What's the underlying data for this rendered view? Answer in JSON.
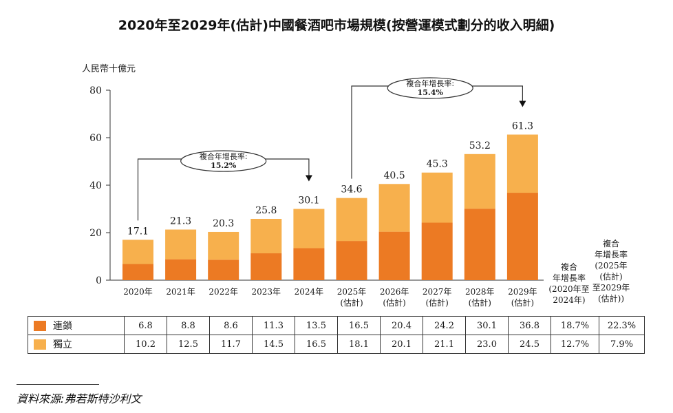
{
  "title": "2020年至2029年(估計)中國餐酒吧市場規模(按營運模式劃分的收入明細)",
  "chart_data": {
    "type": "bar",
    "stacked": true,
    "title": "2020年至2029年(估計)中國餐酒吧市場規模(按營運模式劃分的收入明細)",
    "ylabel": "人民幣十億元",
    "ylim": [
      0,
      80
    ],
    "yticks": [
      "0",
      "20",
      "40",
      "60",
      "80"
    ],
    "categories": [
      [
        "2020年"
      ],
      [
        "2021年"
      ],
      [
        "2022年"
      ],
      [
        "2023年"
      ],
      [
        "2024年"
      ],
      [
        "2025年",
        "(估計)"
      ],
      [
        "2026年",
        "(估計)"
      ],
      [
        "2027年",
        "(估計)"
      ],
      [
        "2028年",
        "(估計)"
      ],
      [
        "2029年",
        "(估計)"
      ]
    ],
    "totals": [
      "17.1",
      "21.3",
      "20.3",
      "25.8",
      "30.1",
      "34.6",
      "40.5",
      "45.3",
      "53.2",
      "61.3"
    ],
    "series": [
      {
        "name": "連鎖",
        "color": "#ec7a23",
        "values": [
          6.8,
          8.8,
          8.6,
          11.3,
          13.5,
          16.5,
          20.4,
          24.2,
          30.1,
          36.8
        ],
        "labels": [
          "6.8",
          "8.8",
          "8.6",
          "11.3",
          "13.5",
          "16.5",
          "20.4",
          "24.2",
          "30.1",
          "36.8"
        ],
        "cagr": [
          "18.7%",
          "22.3%"
        ]
      },
      {
        "name": "獨立",
        "color": "#f7b04d",
        "values": [
          10.2,
          12.5,
          11.7,
          14.5,
          16.5,
          18.1,
          20.1,
          21.1,
          23.0,
          24.5
        ],
        "labels": [
          "10.2",
          "12.5",
          "11.7",
          "14.5",
          "16.5",
          "18.1",
          "20.1",
          "21.1",
          "23.0",
          "24.5"
        ],
        "cagr": [
          "12.7%",
          "7.9%"
        ]
      }
    ],
    "cagr_headers": [
      [
        "複合",
        "年增長率",
        "(2020年至",
        "2024年)"
      ],
      [
        "複合",
        "年增長率",
        "(2025年",
        "(估計)",
        "至2029年",
        "(估計))"
      ]
    ],
    "annotations": [
      {
        "text": [
          "複合年增長率:",
          "15.2%"
        ],
        "from": 0,
        "to": 4
      },
      {
        "text": [
          "複合年增長率:",
          "15.4%"
        ],
        "from": 5,
        "to": 9
      }
    ],
    "grid": false
  },
  "source": "資料來源:弗若斯特沙利文"
}
